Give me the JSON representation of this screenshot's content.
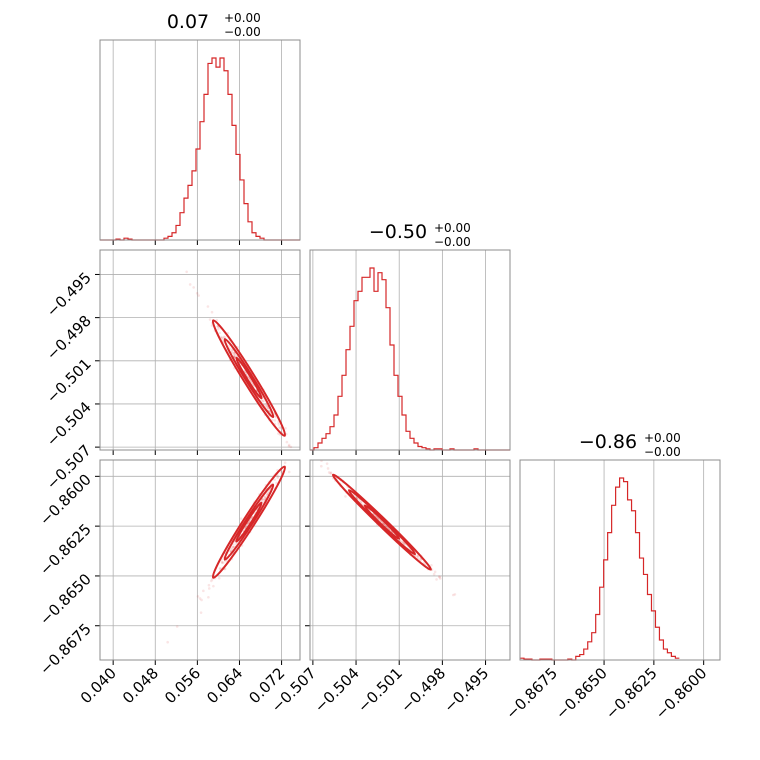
{
  "chart_data": {
    "type": "corner",
    "color": "#d62728",
    "parameters": [
      {
        "title_value": "0.07",
        "title_upper": "+0.00",
        "title_lower": "−0.00",
        "range": [
          0.0375,
          0.0755
        ],
        "ticks": [
          0.04,
          0.048,
          0.056,
          0.064,
          0.072
        ],
        "tick_labels": [
          "0.040",
          "0.048",
          "0.056",
          "0.064",
          "0.072"
        ],
        "hist": {
          "edges_start": 0.0375,
          "bin_width": 0.00076,
          "counts": [
            0,
            0,
            0,
            0,
            0.5,
            0,
            1,
            0.5,
            0,
            0,
            0,
            0,
            0,
            0,
            0,
            0,
            1,
            2,
            4,
            8,
            15,
            23,
            30,
            38,
            50,
            65,
            80,
            97,
            100,
            95,
            100,
            93,
            80,
            63,
            47,
            33,
            20,
            10,
            4,
            2,
            1,
            0,
            0,
            0,
            0,
            0,
            0,
            0,
            0,
            0
          ]
        }
      },
      {
        "title_value": "−0.50",
        "title_upper": "+0.00",
        "title_lower": "−0.00",
        "range": [
          -0.5072,
          -0.4933
        ],
        "ticks": [
          -0.507,
          -0.504,
          -0.501,
          -0.498,
          -0.495
        ],
        "tick_labels": [
          "−0.507",
          "−0.504",
          "−0.501",
          "−0.498",
          "−0.495"
        ],
        "hist": {
          "edges_start": -0.5072,
          "bin_width": 0.000278,
          "counts": [
            0,
            1,
            3,
            5,
            7,
            10,
            15,
            23,
            32,
            43,
            53,
            64,
            68,
            74,
            74,
            78,
            68,
            76,
            73,
            61,
            45,
            32,
            23,
            15,
            8,
            5,
            3,
            1.5,
            1,
            0.5,
            0,
            0.5,
            0.5,
            0,
            0,
            0.5,
            0,
            0,
            0,
            0,
            0,
            0.5,
            0,
            0,
            0,
            0,
            0,
            0,
            0,
            0
          ]
        }
      },
      {
        "title_value": "−0.86",
        "title_upper": "+0.00",
        "title_lower": "−0.00",
        "range": [
          -0.86922,
          -0.85918
        ],
        "ticks": [
          -0.8675,
          -0.865,
          -0.8625,
          -0.86
        ],
        "tick_labels": [
          "−0.8675",
          "−0.8650",
          "−0.8625",
          "−0.8600"
        ],
        "hist": {
          "edges_start": -0.86922,
          "bin_width": 0.0002,
          "counts": [
            1,
            0.5,
            0.5,
            0,
            0,
            0.5,
            0.5,
            0.5,
            0,
            0,
            0,
            0,
            0.5,
            0,
            2,
            3,
            6,
            10,
            15,
            25,
            40,
            55,
            70,
            85,
            95,
            100,
            98,
            88,
            82,
            70,
            56,
            47,
            36,
            27,
            18,
            11,
            6,
            4,
            2,
            1
          ]
        }
      }
    ],
    "pairs": [
      {
        "row": 1,
        "col": 0,
        "center": [
          0.0658,
          -0.5022
        ],
        "slope": -0.59,
        "spread_along": 0.0034,
        "spread_across": 0.00035
      },
      {
        "row": 2,
        "col": 0,
        "center": [
          0.0658,
          -0.8623
        ],
        "slope": 0.41,
        "spread_along": 0.0034,
        "spread_across": 0.00024
      },
      {
        "row": 2,
        "col": 1,
        "center": [
          -0.5022,
          -0.8623
        ],
        "slope": -0.7,
        "spread_along": 0.0017,
        "spread_across": 0.00012
      }
    ]
  }
}
